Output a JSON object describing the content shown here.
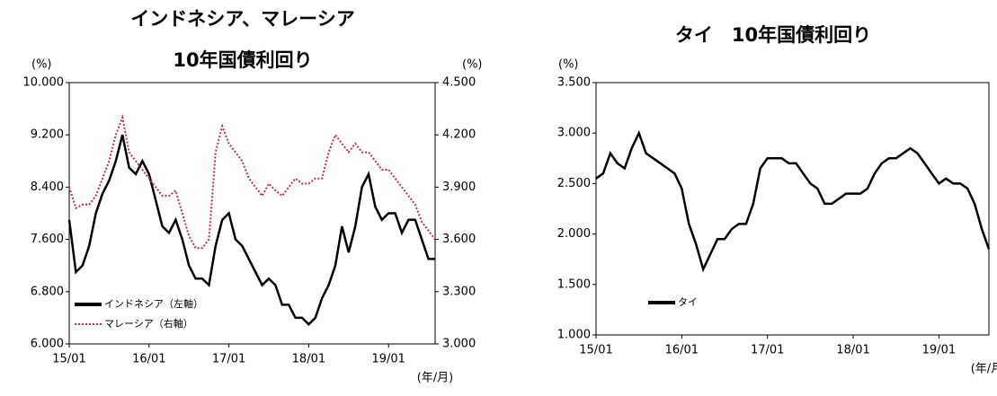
{
  "chart_data": [
    {
      "type": "line",
      "title": [
        "インドネシア、マレーシア",
        "10年国債利回り"
      ],
      "y_unit": "(%)",
      "y2_unit": "(%)",
      "x_unit": "(年/月)",
      "categories": [
        "15/01",
        null,
        null,
        null,
        null,
        null,
        null,
        null,
        null,
        null,
        null,
        null,
        "16/01",
        null,
        null,
        null,
        null,
        null,
        null,
        null,
        null,
        null,
        null,
        null,
        "17/01",
        null,
        null,
        null,
        null,
        null,
        null,
        null,
        null,
        null,
        null,
        null,
        "18/01",
        null,
        null,
        null,
        null,
        null,
        null,
        null,
        null,
        null,
        null,
        null,
        "19/01",
        null,
        null,
        null,
        null,
        null,
        null,
        null
      ],
      "ylim": [
        6,
        10
      ],
      "yticks": [
        {
          "value": 6,
          "label": "6.000"
        },
        {
          "value": 6.8,
          "label": "6.800"
        },
        {
          "value": 7.6,
          "label": "7.600"
        },
        {
          "value": 8.4,
          "label": "8.400"
        },
        {
          "value": 9.2,
          "label": "9.200"
        },
        {
          "value": 10,
          "label": "10.000"
        }
      ],
      "y2lim": [
        3,
        4.5
      ],
      "y2ticks": [
        {
          "value": 3,
          "label": "3.000"
        },
        {
          "value": 3.3,
          "label": "3.300"
        },
        {
          "value": 3.6,
          "label": "3.600"
        },
        {
          "value": 3.9,
          "label": "3.900"
        },
        {
          "value": 4.2,
          "label": "4.200"
        },
        {
          "value": 4.5,
          "label": "4.500"
        }
      ],
      "legend": "lower left",
      "series": [
        {
          "name": "インドネシア（左軸）",
          "color": "#000000",
          "line_style": "solid",
          "values": [
            7.9,
            7.1,
            7.2,
            7.5,
            8.0,
            8.3,
            8.5,
            8.8,
            9.2,
            8.7,
            8.6,
            8.8,
            8.6,
            8.2,
            7.8,
            7.7,
            7.9,
            7.6,
            7.2,
            7.0,
            7.0,
            6.9,
            7.5,
            7.9,
            8.0,
            7.6,
            7.5,
            7.3,
            7.1,
            6.9,
            7.0,
            6.9,
            6.6,
            6.6,
            6.4,
            6.4,
            6.3,
            6.4,
            6.7,
            6.9,
            7.2,
            7.8,
            7.4,
            7.8,
            8.4,
            8.6,
            8.1,
            7.9,
            8.0,
            8.0,
            7.7,
            7.9,
            7.9,
            7.6,
            7.3,
            7.3
          ]
        },
        {
          "name": "マレーシア（右軸）",
          "color": "#c0304a",
          "line_style": "dotted",
          "axis": "y2",
          "values": [
            3.9,
            3.78,
            3.8,
            3.8,
            3.85,
            3.95,
            4.05,
            4.2,
            4.3,
            4.1,
            4.05,
            4.0,
            3.95,
            3.9,
            3.85,
            3.85,
            3.88,
            3.75,
            3.62,
            3.55,
            3.55,
            3.6,
            4.1,
            4.25,
            4.15,
            4.1,
            4.05,
            3.95,
            3.9,
            3.85,
            3.92,
            3.88,
            3.85,
            3.9,
            3.95,
            3.92,
            3.92,
            3.95,
            3.95,
            4.1,
            4.2,
            4.15,
            4.1,
            4.15,
            4.1,
            4.1,
            4.05,
            4.0,
            4.0,
            3.95,
            3.9,
            3.85,
            3.8,
            3.7,
            3.65,
            3.6
          ]
        }
      ]
    },
    {
      "type": "line",
      "title": [
        "タイ　10年国債利回り"
      ],
      "y_unit": "(%)",
      "x_unit": "(年/月)",
      "categories": [
        "15/01",
        null,
        null,
        null,
        null,
        null,
        null,
        null,
        null,
        null,
        null,
        null,
        "16/01",
        null,
        null,
        null,
        null,
        null,
        null,
        null,
        null,
        null,
        null,
        null,
        "17/01",
        null,
        null,
        null,
        null,
        null,
        null,
        null,
        null,
        null,
        null,
        null,
        "18/01",
        null,
        null,
        null,
        null,
        null,
        null,
        null,
        null,
        null,
        null,
        null,
        "19/01",
        null,
        null,
        null,
        null,
        null,
        null,
        null
      ],
      "ylim": [
        1,
        3.5
      ],
      "yticks": [
        {
          "value": 1,
          "label": "1.000"
        },
        {
          "value": 1.5,
          "label": "1.500"
        },
        {
          "value": 2,
          "label": "2.000"
        },
        {
          "value": 2.5,
          "label": "2.500"
        },
        {
          "value": 3,
          "label": "3.000"
        },
        {
          "value": 3.5,
          "label": "3.500"
        }
      ],
      "legend": "lower center",
      "series": [
        {
          "name": "タイ",
          "color": "#000000",
          "line_style": "solid",
          "values": [
            2.55,
            2.6,
            2.8,
            2.7,
            2.65,
            2.85,
            3.0,
            2.8,
            2.75,
            2.7,
            2.65,
            2.6,
            2.45,
            2.1,
            1.9,
            1.65,
            1.8,
            1.95,
            1.95,
            2.05,
            2.1,
            2.1,
            2.3,
            2.65,
            2.75,
            2.75,
            2.75,
            2.7,
            2.7,
            2.6,
            2.5,
            2.45,
            2.3,
            2.3,
            2.35,
            2.4,
            2.4,
            2.4,
            2.45,
            2.6,
            2.7,
            2.75,
            2.75,
            2.8,
            2.85,
            2.8,
            2.7,
            2.6,
            2.5,
            2.55,
            2.5,
            2.5,
            2.45,
            2.3,
            2.05,
            1.85
          ]
        }
      ]
    }
  ]
}
